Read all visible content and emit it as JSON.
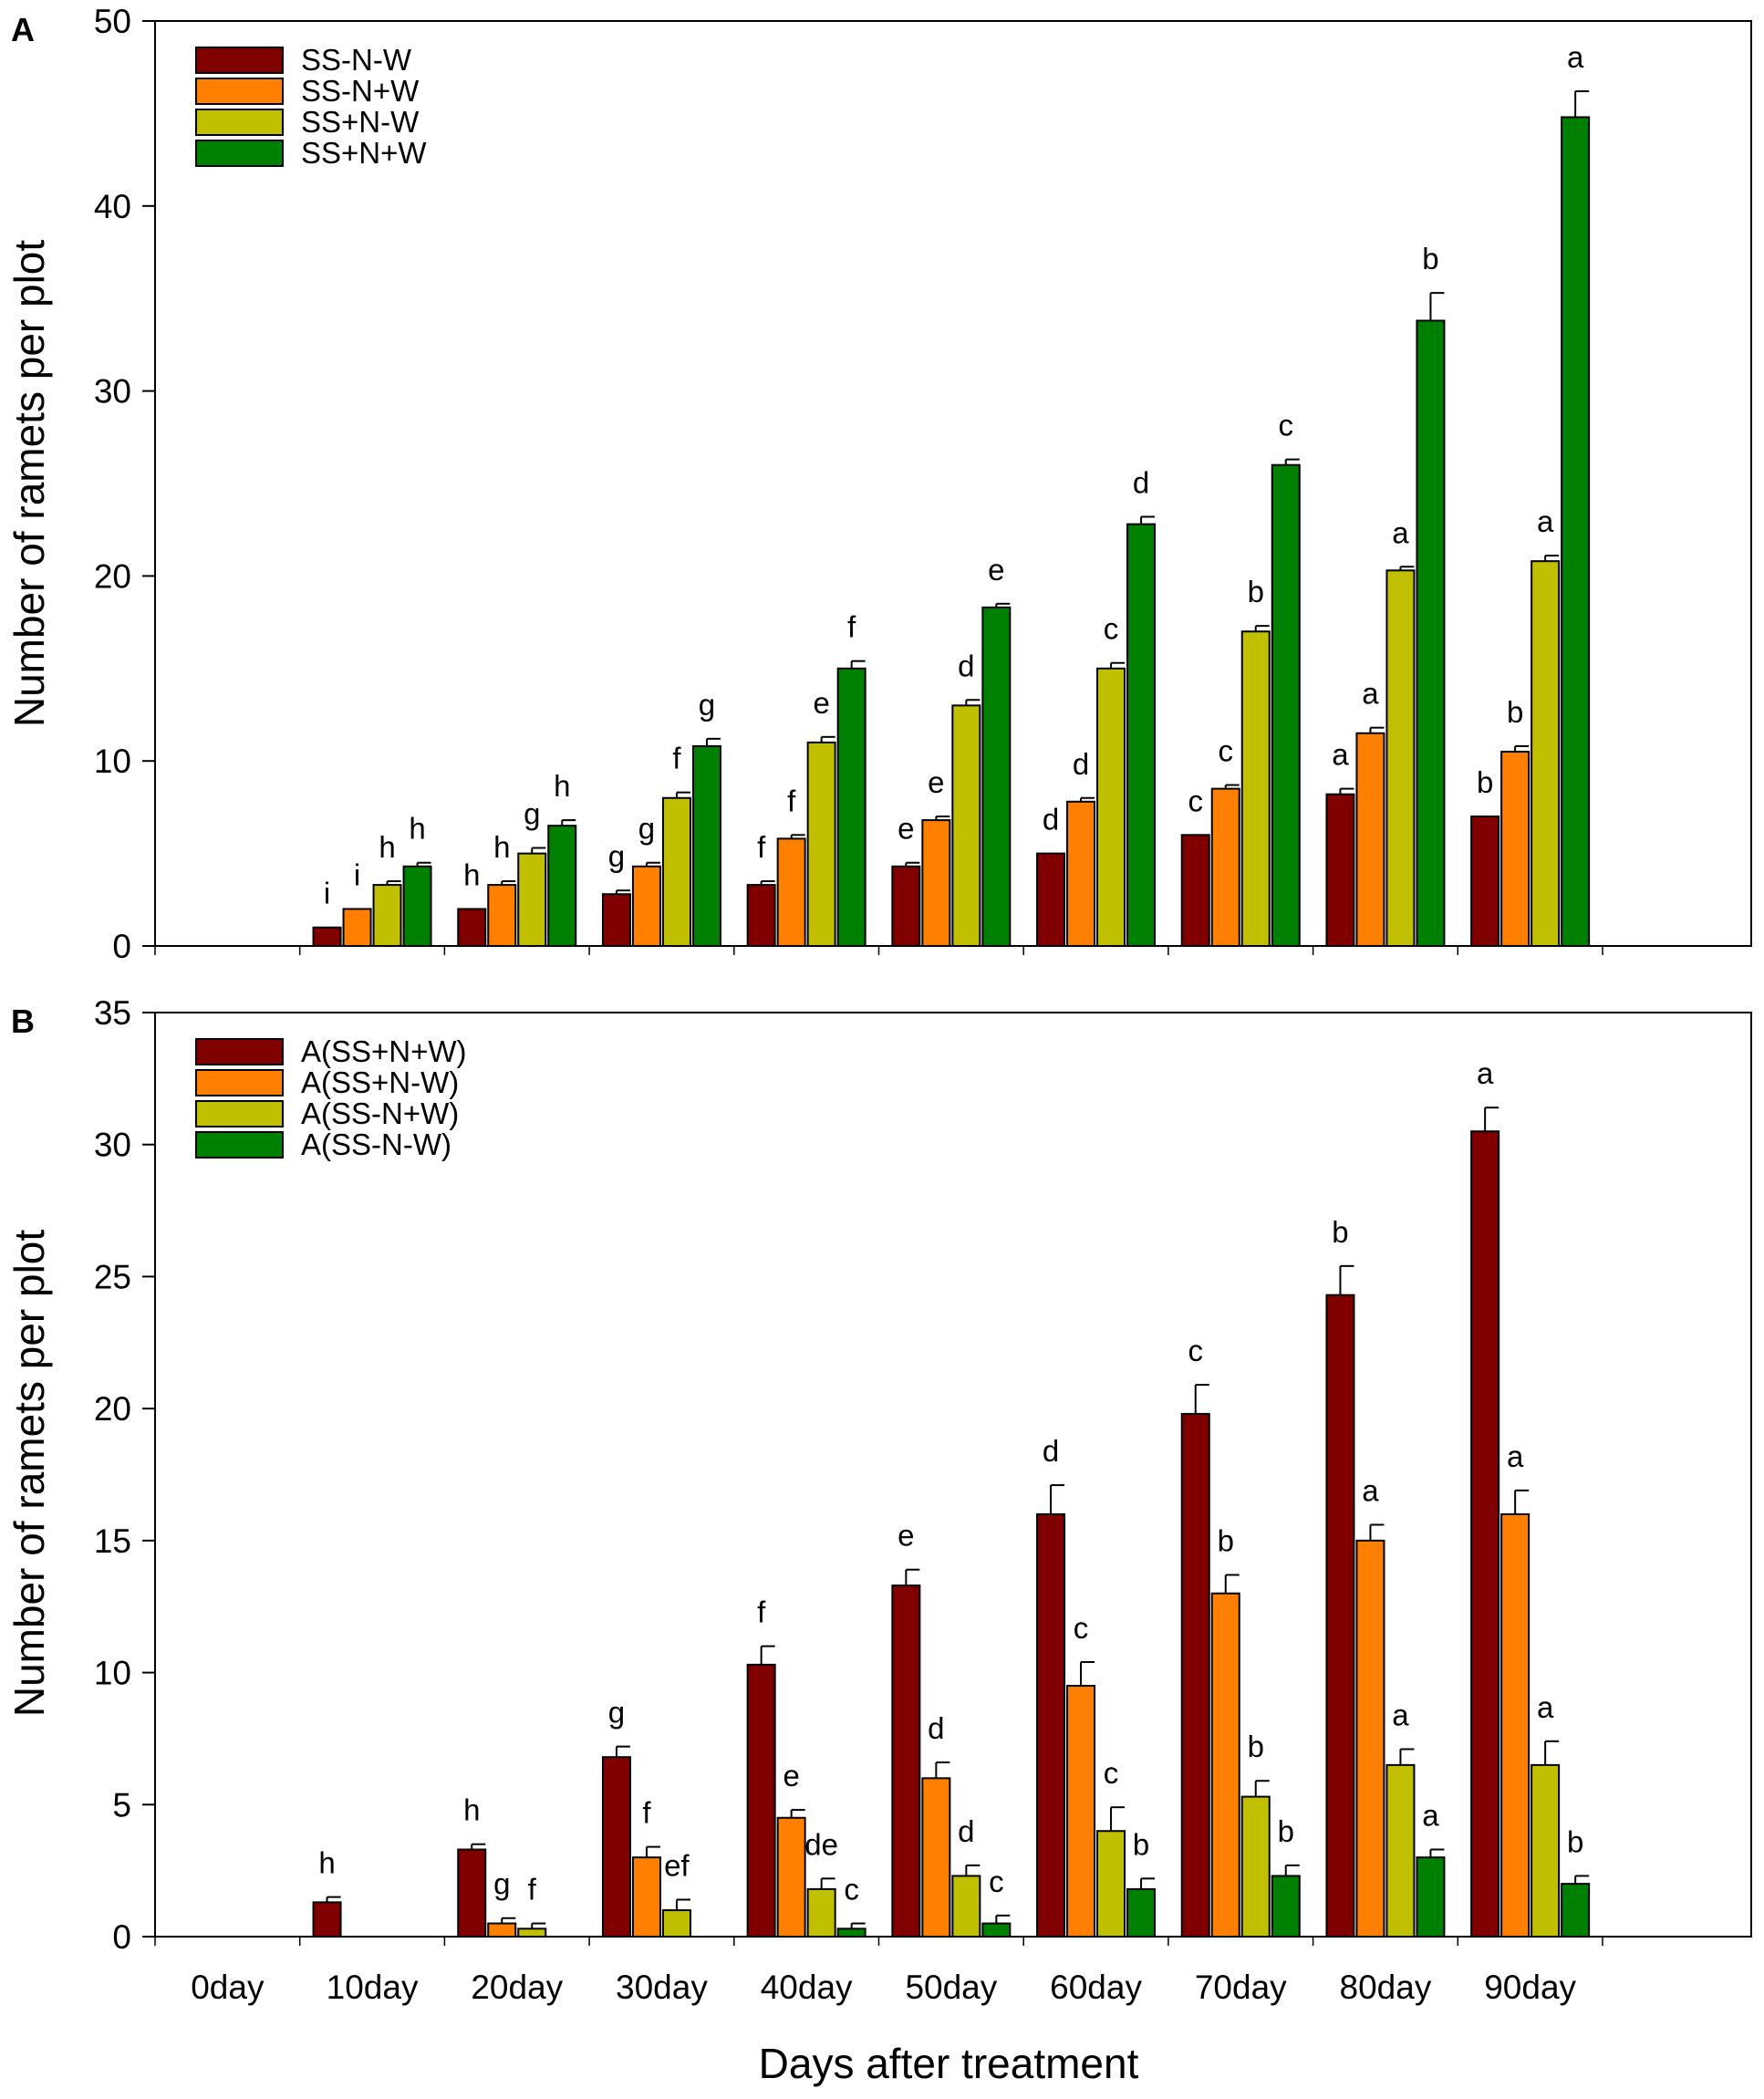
{
  "figure": {
    "xlabel": "Days after treatment",
    "x_tick_labels": [
      "0day",
      "10day",
      "20day",
      "30day",
      "40day",
      "50day",
      "60day",
      "70day",
      "80day",
      "90day"
    ]
  },
  "colors": [
    "#800000",
    "#ff8000",
    "#c0c000",
    "#008000"
  ],
  "chart_data": [
    {
      "panel": "A",
      "type": "bar",
      "ylabel": "Number of ramets  per plot",
      "ylim": [
        0,
        50
      ],
      "yticks": [
        0,
        10,
        20,
        30,
        40,
        50
      ],
      "categories": [
        "0day",
        "10day",
        "20day",
        "30day",
        "40day",
        "50day",
        "60day",
        "70day",
        "80day",
        "90day"
      ],
      "legend_position": "top-left",
      "series": [
        {
          "name": "SS-N-W",
          "values": [
            0,
            1,
            2,
            2.8,
            3.3,
            4.3,
            5,
            6,
            8.2,
            7
          ],
          "errors": [
            0,
            0,
            0,
            0.2,
            0.2,
            0.2,
            0,
            0,
            0.3,
            0
          ],
          "labels": [
            "",
            "i",
            "h",
            "g",
            "f",
            "e",
            "d",
            "c",
            "a",
            "b"
          ]
        },
        {
          "name": "SS-N+W",
          "values": [
            0,
            2,
            3.3,
            4.3,
            5.8,
            6.8,
            7.8,
            8.5,
            11.5,
            10.5
          ],
          "errors": [
            0,
            0,
            0.2,
            0.2,
            0.2,
            0.2,
            0.2,
            0.2,
            0.3,
            0.3
          ],
          "labels": [
            "",
            "i",
            "h",
            "g",
            "f",
            "e",
            "d",
            "c",
            "a",
            "b"
          ]
        },
        {
          "name": "SS+N-W",
          "values": [
            0,
            3.3,
            5,
            8,
            11,
            13,
            15,
            17,
            20.3,
            20.8
          ],
          "errors": [
            0,
            0.2,
            0.3,
            0.3,
            0.3,
            0.3,
            0.3,
            0.3,
            0.2,
            0.3
          ],
          "labels": [
            "",
            "h",
            "g",
            "f",
            "e",
            "d",
            "c",
            "b",
            "a",
            "a"
          ]
        },
        {
          "name": "SS+N+W",
          "values": [
            0,
            4.3,
            6.5,
            10.8,
            15,
            18.3,
            22.8,
            26,
            33.8,
            44.8
          ],
          "errors": [
            0,
            0.2,
            0.3,
            0.4,
            0.4,
            0.2,
            0.4,
            0.3,
            1.5,
            1.4
          ],
          "labels": [
            "",
            "h",
            "h",
            "g",
            "f",
            "e",
            "d",
            "c",
            "b",
            "a"
          ]
        }
      ]
    },
    {
      "panel": "B",
      "type": "bar",
      "ylabel": "Number of ramets per plot",
      "ylim": [
        0,
        35
      ],
      "yticks": [
        0,
        5,
        10,
        15,
        20,
        25,
        30,
        35
      ],
      "categories": [
        "0day",
        "10day",
        "20day",
        "30day",
        "40day",
        "50day",
        "60day",
        "70day",
        "80day",
        "90day"
      ],
      "legend_position": "top-left",
      "series": [
        {
          "name": "A(SS+N+W)",
          "values": [
            0,
            1.3,
            3.3,
            6.8,
            10.3,
            13.3,
            16,
            19.8,
            24.3,
            30.5
          ],
          "errors": [
            0,
            0.2,
            0.2,
            0.4,
            0.7,
            0.6,
            1.1,
            1.1,
            1.1,
            0.9
          ],
          "labels": [
            "",
            "h",
            "h",
            "g",
            "f",
            "e",
            "d",
            "c",
            "b",
            "a"
          ]
        },
        {
          "name": "A(SS+N-W)",
          "values": [
            0,
            0,
            0.5,
            3,
            4.5,
            6,
            9.5,
            13,
            15,
            16
          ],
          "errors": [
            0,
            0,
            0.2,
            0.4,
            0.3,
            0.6,
            0.9,
            0.7,
            0.6,
            0.9
          ],
          "labels": [
            "",
            "",
            "g",
            "f",
            "e",
            "d",
            "c",
            "b",
            "a",
            "a"
          ]
        },
        {
          "name": "A(SS-N+W)",
          "values": [
            0,
            0,
            0.3,
            1,
            1.8,
            2.3,
            4,
            5.3,
            6.5,
            6.5
          ],
          "errors": [
            0,
            0,
            0.2,
            0.4,
            0.4,
            0.4,
            0.9,
            0.6,
            0.6,
            0.9
          ],
          "labels": [
            "",
            "",
            "f",
            "ef",
            "de",
            "d",
            "c",
            "b",
            "a",
            "a"
          ]
        },
        {
          "name": "A(SS-N-W)",
          "values": [
            0,
            0,
            0,
            0,
            0.3,
            0.5,
            1.8,
            2.3,
            3,
            2
          ],
          "errors": [
            0,
            0,
            0,
            0,
            0.2,
            0.3,
            0.4,
            0.4,
            0.3,
            0.3
          ],
          "labels": [
            "",
            "",
            "",
            "",
            "c",
            "c",
            "b",
            "b",
            "a",
            "b"
          ]
        }
      ]
    }
  ]
}
